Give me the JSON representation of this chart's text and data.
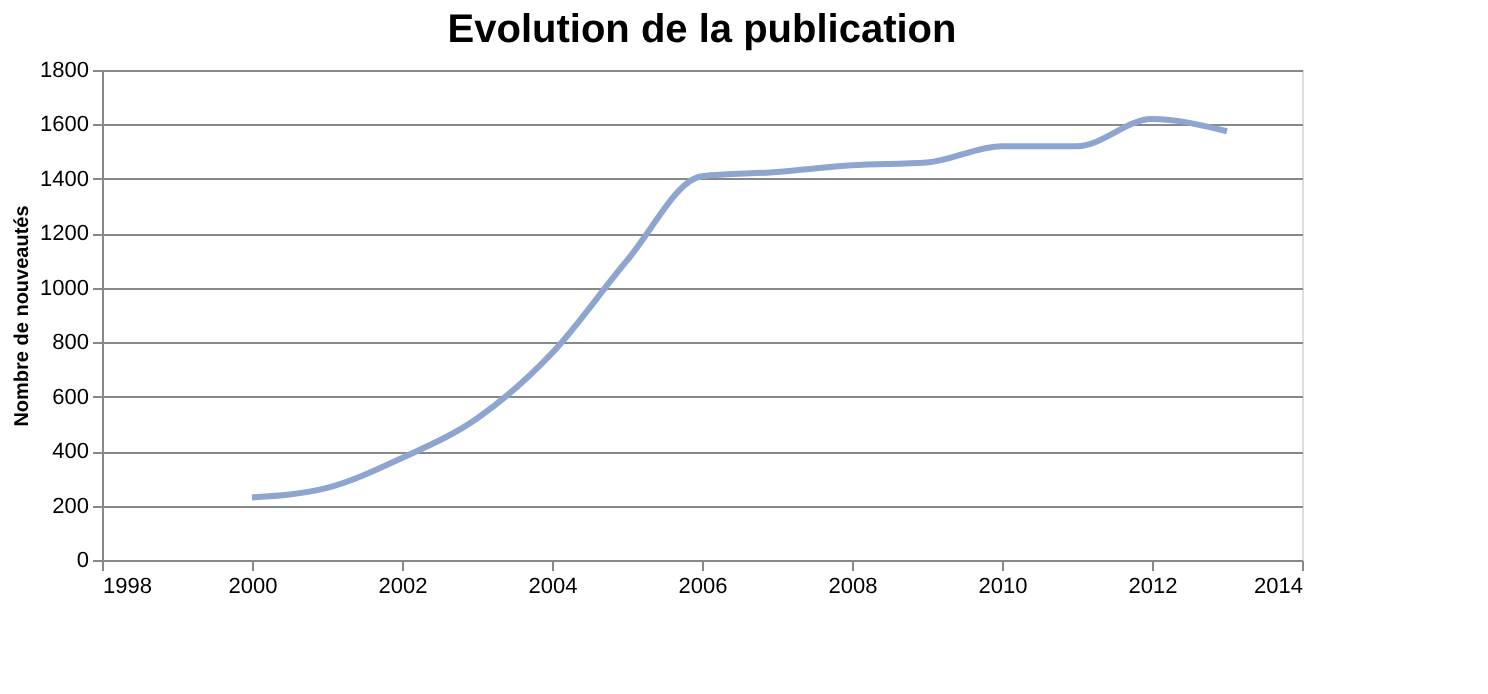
{
  "chart_data": {
    "type": "line",
    "title": "Evolution de la publication",
    "ylabel": "Nombre de nouveautés",
    "x": [
      2000,
      2001,
      2002,
      2003,
      2004,
      2005,
      2006,
      2007,
      2008,
      2009,
      2010,
      2011,
      2012,
      2013
    ],
    "series": [
      {
        "color": "#8ea5cf",
        "values": [
          230,
          265,
          375,
          520,
          760,
          1100,
          1410,
          1425,
          1450,
          1460,
          1520,
          1520,
          1620,
          1575
        ]
      }
    ],
    "xlim": [
      1998,
      2014
    ],
    "xticks": [
      1998,
      2000,
      2002,
      2004,
      2006,
      2008,
      2010,
      2012,
      2014
    ],
    "ylim": [
      0,
      1800
    ],
    "yticks": [
      0,
      200,
      400,
      600,
      800,
      1000,
      1200,
      1400,
      1600,
      1800
    ],
    "grid": "y",
    "legend": false,
    "marker": "none",
    "line_style": "solid"
  }
}
